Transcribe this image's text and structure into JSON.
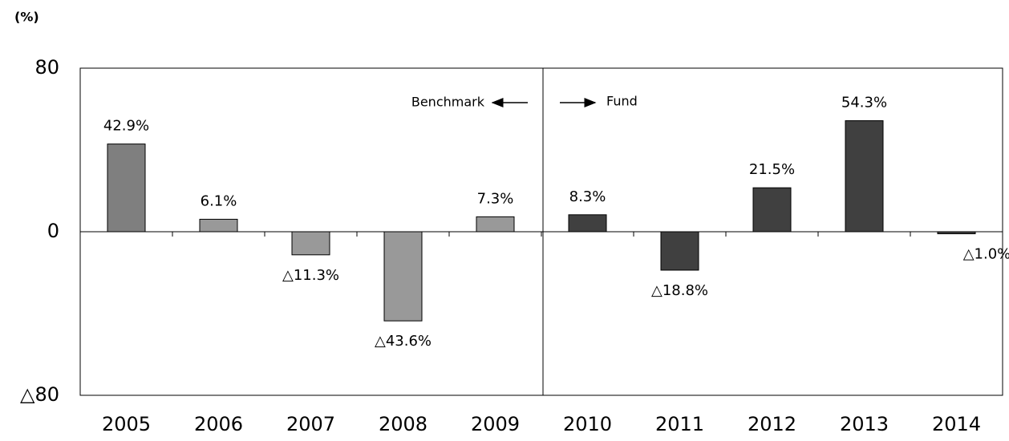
{
  "chart_data": {
    "type": "bar",
    "y_axis_label": "(%)",
    "categories": [
      "2005",
      "2006",
      "2007",
      "2008",
      "2009",
      "2010",
      "2011",
      "2012",
      "2013",
      "2014"
    ],
    "values": [
      42.9,
      6.1,
      -11.3,
      -43.6,
      7.3,
      8.3,
      -18.8,
      21.5,
      54.3,
      -1.0
    ],
    "value_labels": [
      "42.9%",
      "6.1%",
      "△11.3%",
      "△43.6%",
      "7.3%",
      "8.3%",
      "△18.8%",
      "21.5%",
      "54.3%",
      "△1.0%"
    ],
    "colors": [
      "#7f7f7f",
      "#999999",
      "#999999",
      "#999999",
      "#999999",
      "#404040",
      "#404040",
      "#404040",
      "#404040",
      "#404040"
    ],
    "ylim": [
      -80,
      80
    ],
    "yticks": [
      80,
      0,
      {
        "value": -80,
        "label": "△80"
      }
    ],
    "grid": false,
    "annotations": [
      "Benchmark",
      "Fund"
    ]
  }
}
